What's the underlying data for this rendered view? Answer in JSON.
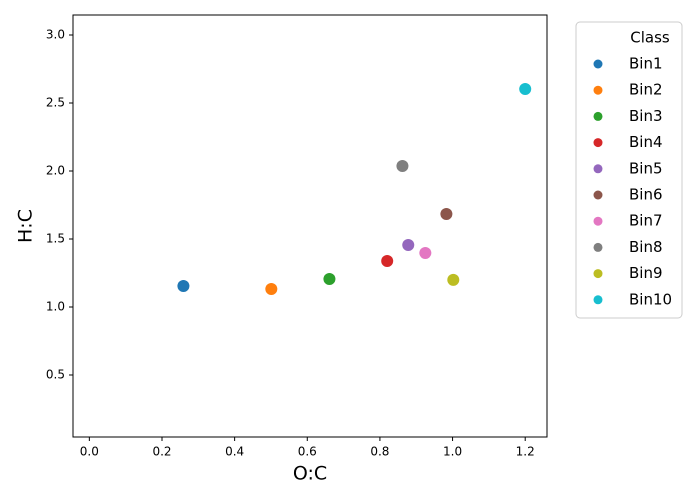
{
  "chart_data": {
    "type": "scatter",
    "x_label": "O:C",
    "y_label": "H:C",
    "legend_title": "Class",
    "legend": "right",
    "grid": false,
    "xlim": [
      -0.045,
      1.26
    ],
    "ylim": [
      0.044,
      3.147
    ],
    "xticks": [
      {
        "value": 0,
        "label": "0.0"
      },
      0.2,
      0.4,
      0.6,
      0.8,
      {
        "value": 1,
        "label": "1.0"
      },
      1.2
    ],
    "yticks": [
      0.5,
      {
        "value": 1,
        "label": "1.0"
      },
      1.5,
      {
        "value": 2,
        "label": "2.0"
      },
      2.5,
      {
        "value": 3,
        "label": "3.0"
      }
    ],
    "series": [
      {
        "name": "Bin1",
        "color": "#1f77b4",
        "x": [
          0.259
        ],
        "values": [
          1.154
        ]
      },
      {
        "name": "Bin2",
        "color": "#ff7f0e",
        "x": [
          0.501
        ],
        "values": [
          1.132
        ]
      },
      {
        "name": "Bin3",
        "color": "#2ca02c",
        "x": [
          0.661
        ],
        "values": [
          1.206
        ]
      },
      {
        "name": "Bin4",
        "color": "#d62728",
        "x": [
          0.82
        ],
        "values": [
          1.338
        ]
      },
      {
        "name": "Bin5",
        "color": "#9467bd",
        "x": [
          0.878
        ],
        "values": [
          1.456
        ]
      },
      {
        "name": "Bin6",
        "color": "#8c564b",
        "x": [
          0.983
        ],
        "values": [
          1.684
        ]
      },
      {
        "name": "Bin7",
        "color": "#e377c2",
        "x": [
          0.925
        ],
        "values": [
          1.397
        ]
      },
      {
        "name": "Bin8",
        "color": "#7f7f7f",
        "x": [
          0.862
        ],
        "values": [
          2.037
        ]
      },
      {
        "name": "Bin9",
        "color": "#bcbd22",
        "x": [
          1.002
        ],
        "values": [
          1.199
        ]
      },
      {
        "name": "Bin10",
        "color": "#17becf",
        "x": [
          1.2
        ],
        "values": [
          2.603
        ]
      }
    ]
  }
}
